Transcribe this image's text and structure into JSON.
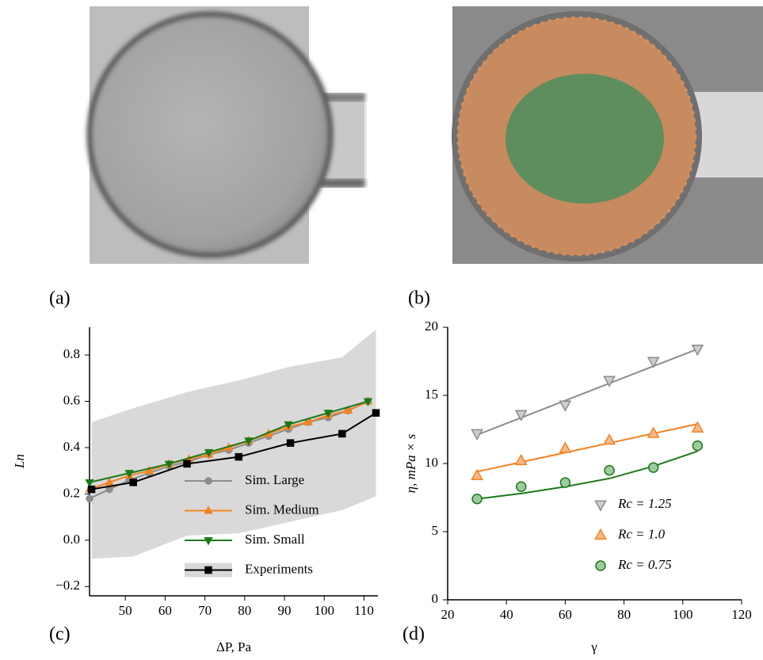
{
  "panels": {
    "a": "(a)",
    "b": "(b)",
    "c": "(c)",
    "d": "(d)"
  },
  "chart_data": [
    {
      "type": "line",
      "xlabel": "ΔP, Pa",
      "ylabel": "Ln",
      "xlim": [
        41,
        113.5
      ],
      "xticks": [
        50,
        60,
        70,
        80,
        90,
        100,
        110
      ],
      "ylim": [
        -0.24,
        0.92
      ],
      "yticks": [
        {
          "value": -0.2,
          "label": "−0.2"
        },
        {
          "value": 0,
          "label": "0.0"
        },
        0.2,
        0.4,
        0.6,
        0.8
      ],
      "legend": "lower right",
      "series": [
        {
          "name": "Sim. Large",
          "color": "#8c8c8c",
          "marker": "circle",
          "x": [
            41,
            46,
            51,
            56,
            61,
            66,
            71,
            76,
            81,
            86,
            91,
            96,
            101,
            106,
            111
          ],
          "values": [
            0.18,
            0.22,
            0.26,
            0.29,
            0.32,
            0.34,
            0.37,
            0.39,
            0.42,
            0.45,
            0.48,
            0.51,
            0.53,
            0.56,
            0.6
          ]
        },
        {
          "name": "Sim. Medium",
          "color": "#f58220",
          "marker": "triangle-up",
          "x": [
            41,
            46,
            51,
            56,
            61,
            66,
            71,
            76,
            81,
            86,
            91,
            96,
            101,
            106,
            111
          ],
          "values": [
            0.22,
            0.25,
            0.28,
            0.3,
            0.33,
            0.35,
            0.37,
            0.4,
            0.43,
            0.46,
            0.49,
            0.51,
            0.54,
            0.56,
            0.6
          ]
        },
        {
          "name": "Sim. Small",
          "color": "#1a7a1a",
          "marker": "triangle-down",
          "x": [
            41,
            51,
            61,
            71,
            81,
            91,
            101,
            111
          ],
          "values": [
            0.25,
            0.29,
            0.33,
            0.38,
            0.43,
            0.5,
            0.55,
            0.6
          ]
        },
        {
          "name": "Experiments",
          "color": "#000000",
          "marker": "square",
          "band": "#d9d9d9",
          "x": [
            41.5,
            52,
            65.5,
            78.5,
            91.5,
            104.5,
            113
          ],
          "values": [
            0.22,
            0.25,
            0.33,
            0.36,
            0.42,
            0.46,
            0.55
          ],
          "lower": [
            -0.08,
            -0.07,
            0.02,
            0.03,
            0.08,
            0.13,
            0.19
          ],
          "upper": [
            0.51,
            0.57,
            0.64,
            0.69,
            0.75,
            0.79,
            0.91
          ]
        }
      ]
    },
    {
      "type": "scatter",
      "xlabel": "γ",
      "ylabel": "η, mPa × s",
      "xlim": [
        20,
        120
      ],
      "xticks": [
        20,
        40,
        60,
        80,
        100,
        120
      ],
      "ylim": [
        0,
        20
      ],
      "yticks": [
        0,
        5,
        10,
        15,
        20
      ],
      "legend": "lower right",
      "x": [
        30,
        45,
        60,
        75,
        90,
        105
      ],
      "series": [
        {
          "name": "Rc = 1.25",
          "color": "#8c8c8c",
          "fill": "#cccccc",
          "marker": "triangle-down",
          "values": [
            12.2,
            13.6,
            14.3,
            16.1,
            17.5,
            18.4
          ],
          "fit": [
            12.1,
            13.36,
            14.62,
            15.88,
            17.14,
            18.4
          ]
        },
        {
          "name": "Rc = 1.0",
          "color": "#f58220",
          "fill": "#f6b98a",
          "marker": "triangle-up",
          "values": [
            9.1,
            10.2,
            11.1,
            11.7,
            12.2,
            12.6
          ],
          "fit": [
            9.4,
            10.1,
            10.8,
            11.5,
            12.2,
            12.9
          ]
        },
        {
          "name": "Rc = 0.75",
          "color": "#1a7a1a",
          "fill": "#9fc99f",
          "marker": "circle",
          "values": [
            7.4,
            8.3,
            8.6,
            9.5,
            9.7,
            11.3
          ],
          "fit": [
            7.4,
            7.8,
            8.3,
            8.9,
            9.8,
            10.9
          ]
        }
      ]
    }
  ]
}
